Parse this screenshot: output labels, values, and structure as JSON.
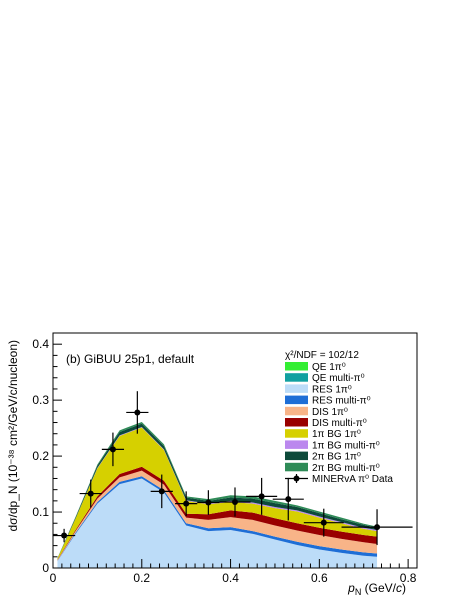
{
  "chart_data": {
    "type": "area",
    "panel_label": "(b) GiBUU 25p1, default",
    "chi2_text": "χ²/NDF = 102/12",
    "xlabel": "p_N (GeV/c)",
    "ylabel": "dσ/dp_N (10^-38 cm²/GeV/c/nucleon)",
    "xlabel_parts": {
      "main": "p",
      "sub": "N",
      "rest": " (GeV/",
      "italic": "c",
      "end": ")"
    },
    "ylabel_text": "dσ/dp_N (10⁻³⁸ cm²/GeV/c/nucleon)",
    "xlim": [
      0,
      0.82
    ],
    "ylim": [
      0,
      0.42
    ],
    "x_ticks": [
      0,
      0.2,
      0.4,
      0.6,
      0.8
    ],
    "x_tick_labels": [
      "0",
      "0.2",
      "0.4",
      "0.6",
      "0.8"
    ],
    "y_ticks": [
      0,
      0.1,
      0.2,
      0.3,
      0.4
    ],
    "y_tick_labels": [
      "0",
      "0.1",
      "0.2",
      "0.3",
      "0.4"
    ],
    "x": [
      0.01,
      0.05,
      0.1,
      0.15,
      0.2,
      0.25,
      0.3,
      0.35,
      0.4,
      0.45,
      0.5,
      0.55,
      0.6,
      0.65,
      0.7,
      0.73
    ],
    "series": [
      {
        "name": "QE 1π⁰",
        "color": "#33ee33",
        "values": [
          0.0,
          0.0,
          0.0,
          0.0,
          0.0,
          0.0,
          0.0,
          0.0,
          0.0,
          0.0,
          0.0,
          0.0,
          0.0,
          0.0,
          0.0,
          0.0
        ]
      },
      {
        "name": "QE multi-π⁰",
        "color": "#11a0a0",
        "values": [
          0.0,
          0.0,
          0.0,
          0.0,
          0.0,
          0.0,
          0.001,
          0.001,
          0.001,
          0.001,
          0.001,
          0.001,
          0.001,
          0.001,
          0.001,
          0.001
        ]
      },
      {
        "name": "RES 1π⁰",
        "color": "#bcdcf8",
        "values": [
          0.012,
          0.06,
          0.115,
          0.15,
          0.16,
          0.135,
          0.075,
          0.065,
          0.067,
          0.06,
          0.05,
          0.04,
          0.032,
          0.026,
          0.021,
          0.019
        ]
      },
      {
        "name": "RES multi-π⁰",
        "color": "#1e6ed6",
        "values": [
          0.0008,
          0.002,
          0.003,
          0.004,
          0.004,
          0.004,
          0.004,
          0.005,
          0.005,
          0.005,
          0.005,
          0.006,
          0.006,
          0.006,
          0.006,
          0.006
        ]
      },
      {
        "name": "DIS 1π⁰",
        "color": "#f8b488",
        "values": [
          0.001,
          0.003,
          0.006,
          0.008,
          0.01,
          0.01,
          0.01,
          0.015,
          0.018,
          0.02,
          0.02,
          0.02,
          0.02,
          0.019,
          0.018,
          0.017
        ]
      },
      {
        "name": "DIS multi-π⁰",
        "color": "#990000",
        "values": [
          0.001,
          0.002,
          0.004,
          0.006,
          0.007,
          0.007,
          0.007,
          0.01,
          0.012,
          0.013,
          0.013,
          0.013,
          0.013,
          0.013,
          0.013,
          0.013
        ]
      },
      {
        "name": "1π BG 1π⁰",
        "color": "#d6d000",
        "values": [
          0.002,
          0.02,
          0.05,
          0.068,
          0.07,
          0.055,
          0.023,
          0.018,
          0.015,
          0.016,
          0.018,
          0.021,
          0.018,
          0.015,
          0.011,
          0.01
        ]
      },
      {
        "name": "1π BG multi-π⁰",
        "color": "#bb88ee",
        "values": [
          0.0,
          0.0,
          0.001,
          0.001,
          0.001,
          0.001,
          0.001,
          0.001,
          0.002,
          0.002,
          0.002,
          0.002,
          0.002,
          0.002,
          0.002,
          0.002
        ]
      },
      {
        "name": "2π BG 1π⁰",
        "color": "#0d4a3a",
        "values": [
          0.0005,
          0.002,
          0.004,
          0.006,
          0.006,
          0.006,
          0.005,
          0.005,
          0.006,
          0.007,
          0.007,
          0.006,
          0.006,
          0.005,
          0.005,
          0.004
        ]
      },
      {
        "name": "2π BG multi-π⁰",
        "color": "#2e8b57",
        "values": [
          0.0003,
          0.001,
          0.002,
          0.003,
          0.003,
          0.003,
          0.002,
          0.003,
          0.004,
          0.004,
          0.004,
          0.003,
          0.003,
          0.003,
          0.002,
          0.002
        ]
      }
    ],
    "data_points": {
      "name": "MINERvA π⁰ Data",
      "points": [
        {
          "x": 0.025,
          "xerr": 0.025,
          "y": 0.058,
          "yerr": 0.012
        },
        {
          "x": 0.085,
          "xerr": 0.025,
          "y": 0.133,
          "yerr": 0.025
        },
        {
          "x": 0.135,
          "xerr": 0.025,
          "y": 0.212,
          "yerr": 0.03
        },
        {
          "x": 0.19,
          "xerr": 0.025,
          "y": 0.278,
          "yerr": 0.038
        },
        {
          "x": 0.245,
          "xerr": 0.025,
          "y": 0.137,
          "yerr": 0.03
        },
        {
          "x": 0.3,
          "xerr": 0.025,
          "y": 0.115,
          "yerr": 0.022
        },
        {
          "x": 0.35,
          "xerr": 0.025,
          "y": 0.117,
          "yerr": 0.022
        },
        {
          "x": 0.41,
          "xerr": 0.035,
          "y": 0.118,
          "yerr": 0.026
        },
        {
          "x": 0.47,
          "xerr": 0.035,
          "y": 0.128,
          "yerr": 0.033
        },
        {
          "x": 0.53,
          "xerr": 0.035,
          "y": 0.123,
          "yerr": 0.038
        },
        {
          "x": 0.61,
          "xerr": 0.045,
          "y": 0.081,
          "yerr": 0.025
        },
        {
          "x": 0.73,
          "xerr": 0.08,
          "y": 0.073,
          "yerr": 0.032
        }
      ]
    },
    "legend_position": "top-right",
    "grid": false
  }
}
